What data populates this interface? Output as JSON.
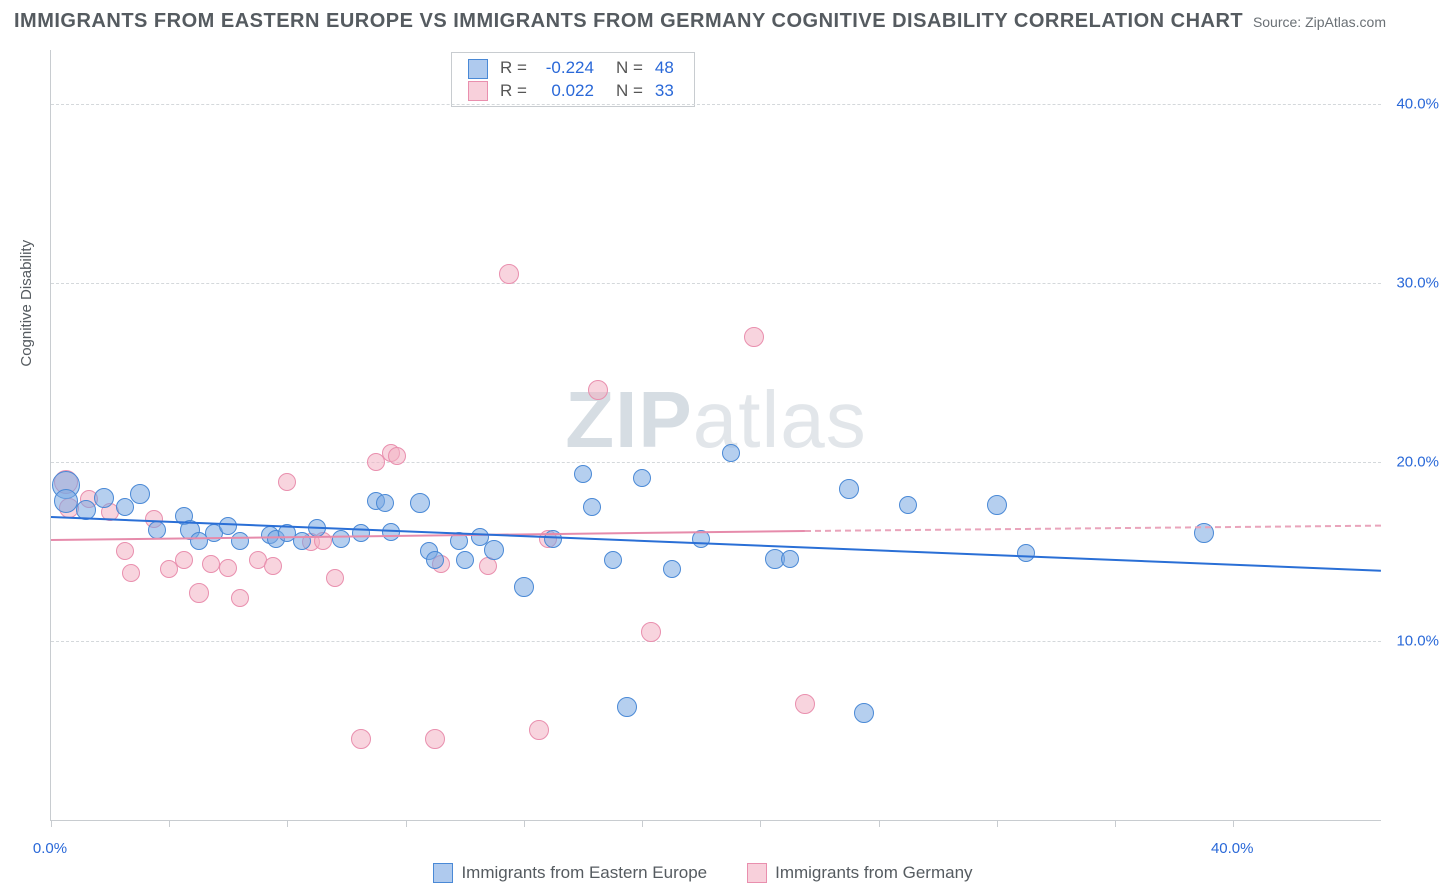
{
  "title": "IMMIGRANTS FROM EASTERN EUROPE VS IMMIGRANTS FROM GERMANY COGNITIVE DISABILITY CORRELATION CHART",
  "source_label": "Source: ZipAtlas.com",
  "watermark": {
    "bold": "ZIP",
    "rest": "atlas"
  },
  "y_axis_title": "Cognitive Disability",
  "plot": {
    "x_min": 0,
    "x_max": 45,
    "y_min": 0,
    "y_max": 43,
    "y_gridlines": [
      10,
      20,
      30,
      40
    ],
    "y_tick_labels": [
      "10.0%",
      "20.0%",
      "30.0%",
      "40.0%"
    ],
    "x_ticks_at": [
      0,
      4,
      8,
      12,
      16,
      20,
      24,
      28,
      32,
      36,
      40
    ],
    "x_tick_labels": {
      "0": "0.0%",
      "40": "40.0%"
    },
    "background": "#ffffff",
    "grid_color": "#d4d8db",
    "axis_color": "#c8ccd0",
    "tick_label_color": "#2968d8",
    "tick_fontsize": 15
  },
  "series": [
    {
      "name": "Immigrants from Eastern Europe",
      "color_fill": "rgba(121,167,226,0.55)",
      "color_stroke": "#4a89d6",
      "marker_radius_base": 9,
      "points": [
        {
          "x": 0.5,
          "y": 18.7,
          "r": 14
        },
        {
          "x": 0.5,
          "y": 17.8,
          "r": 12
        },
        {
          "x": 1.2,
          "y": 17.3,
          "r": 10
        },
        {
          "x": 1.8,
          "y": 18.0,
          "r": 10
        },
        {
          "x": 2.5,
          "y": 17.5,
          "r": 9
        },
        {
          "x": 3.0,
          "y": 18.2,
          "r": 10
        },
        {
          "x": 3.6,
          "y": 16.2,
          "r": 9
        },
        {
          "x": 4.5,
          "y": 17.0,
          "r": 9
        },
        {
          "x": 4.7,
          "y": 16.2,
          "r": 10
        },
        {
          "x": 5.0,
          "y": 15.6,
          "r": 9
        },
        {
          "x": 5.5,
          "y": 16.0,
          "r": 9
        },
        {
          "x": 6.0,
          "y": 16.4,
          "r": 9
        },
        {
          "x": 6.4,
          "y": 15.6,
          "r": 9
        },
        {
          "x": 7.4,
          "y": 15.9,
          "r": 9
        },
        {
          "x": 7.6,
          "y": 15.7,
          "r": 9
        },
        {
          "x": 8.0,
          "y": 16.0,
          "r": 9
        },
        {
          "x": 8.5,
          "y": 15.6,
          "r": 9
        },
        {
          "x": 9.0,
          "y": 16.3,
          "r": 9
        },
        {
          "x": 9.8,
          "y": 15.7,
          "r": 9
        },
        {
          "x": 10.5,
          "y": 16.0,
          "r": 9
        },
        {
          "x": 11.0,
          "y": 17.8,
          "r": 9
        },
        {
          "x": 11.3,
          "y": 17.7,
          "r": 9
        },
        {
          "x": 11.5,
          "y": 16.1,
          "r": 9
        },
        {
          "x": 12.5,
          "y": 17.7,
          "r": 10
        },
        {
          "x": 12.8,
          "y": 15.0,
          "r": 9
        },
        {
          "x": 13.0,
          "y": 14.5,
          "r": 9
        },
        {
          "x": 13.8,
          "y": 15.6,
          "r": 9
        },
        {
          "x": 14.0,
          "y": 14.5,
          "r": 9
        },
        {
          "x": 14.5,
          "y": 15.8,
          "r": 9
        },
        {
          "x": 15.0,
          "y": 15.1,
          "r": 10
        },
        {
          "x": 16.0,
          "y": 13.0,
          "r": 10
        },
        {
          "x": 17.0,
          "y": 15.7,
          "r": 9
        },
        {
          "x": 18.0,
          "y": 19.3,
          "r": 9
        },
        {
          "x": 18.3,
          "y": 17.5,
          "r": 9
        },
        {
          "x": 19.0,
          "y": 14.5,
          "r": 9
        },
        {
          "x": 19.5,
          "y": 6.3,
          "r": 10
        },
        {
          "x": 20.0,
          "y": 19.1,
          "r": 9
        },
        {
          "x": 21.0,
          "y": 14.0,
          "r": 9
        },
        {
          "x": 22.0,
          "y": 15.7,
          "r": 9
        },
        {
          "x": 23.0,
          "y": 20.5,
          "r": 9
        },
        {
          "x": 24.5,
          "y": 14.6,
          "r": 10
        },
        {
          "x": 25.0,
          "y": 14.6,
          "r": 9
        },
        {
          "x": 27.0,
          "y": 18.5,
          "r": 10
        },
        {
          "x": 27.5,
          "y": 6.0,
          "r": 10
        },
        {
          "x": 29.0,
          "y": 17.6,
          "r": 9
        },
        {
          "x": 32.0,
          "y": 17.6,
          "r": 10
        },
        {
          "x": 33.0,
          "y": 14.9,
          "r": 9
        },
        {
          "x": 39.0,
          "y": 16.0,
          "r": 10
        }
      ],
      "trend": {
        "x1": 0,
        "y1": 17.0,
        "x2": 45,
        "y2": 14.0,
        "color": "#2a6fd6",
        "width": 2.5
      }
    },
    {
      "name": "Immigrants from Germany",
      "color_fill": "rgba(243,176,195,0.55)",
      "color_stroke": "#e98fae",
      "marker_radius_base": 9,
      "points": [
        {
          "x": 0.5,
          "y": 18.9,
          "r": 12
        },
        {
          "x": 0.6,
          "y": 17.4,
          "r": 10
        },
        {
          "x": 1.3,
          "y": 17.9,
          "r": 9
        },
        {
          "x": 2.0,
          "y": 17.2,
          "r": 9
        },
        {
          "x": 2.5,
          "y": 15.0,
          "r": 9
        },
        {
          "x": 2.7,
          "y": 13.8,
          "r": 9
        },
        {
          "x": 3.5,
          "y": 16.8,
          "r": 9
        },
        {
          "x": 4.0,
          "y": 14.0,
          "r": 9
        },
        {
          "x": 4.5,
          "y": 14.5,
          "r": 9
        },
        {
          "x": 5.0,
          "y": 12.7,
          "r": 10
        },
        {
          "x": 5.4,
          "y": 14.3,
          "r": 9
        },
        {
          "x": 6.0,
          "y": 14.1,
          "r": 9
        },
        {
          "x": 6.4,
          "y": 12.4,
          "r": 9
        },
        {
          "x": 7.0,
          "y": 14.5,
          "r": 9
        },
        {
          "x": 7.5,
          "y": 14.2,
          "r": 9
        },
        {
          "x": 8.0,
          "y": 18.9,
          "r": 9
        },
        {
          "x": 8.8,
          "y": 15.5,
          "r": 9
        },
        {
          "x": 9.2,
          "y": 15.6,
          "r": 9
        },
        {
          "x": 9.6,
          "y": 13.5,
          "r": 9
        },
        {
          "x": 10.5,
          "y": 4.5,
          "r": 10
        },
        {
          "x": 11.0,
          "y": 20.0,
          "r": 9
        },
        {
          "x": 11.5,
          "y": 20.5,
          "r": 9
        },
        {
          "x": 11.7,
          "y": 20.3,
          "r": 9
        },
        {
          "x": 13.0,
          "y": 4.5,
          "r": 10
        },
        {
          "x": 13.2,
          "y": 14.3,
          "r": 9
        },
        {
          "x": 14.8,
          "y": 14.2,
          "r": 9
        },
        {
          "x": 15.5,
          "y": 30.5,
          "r": 10
        },
        {
          "x": 16.5,
          "y": 5.0,
          "r": 10
        },
        {
          "x": 16.8,
          "y": 15.7,
          "r": 9
        },
        {
          "x": 18.5,
          "y": 24.0,
          "r": 10
        },
        {
          "x": 20.3,
          "y": 10.5,
          "r": 10
        },
        {
          "x": 23.8,
          "y": 27.0,
          "r": 10
        },
        {
          "x": 25.5,
          "y": 6.5,
          "r": 10
        }
      ],
      "trend_solid": {
        "x1": 0,
        "y1": 15.7,
        "x2": 25.5,
        "y2": 16.2,
        "color": "#e68bab",
        "width": 2
      },
      "trend_dashed": {
        "x1": 25.5,
        "y1": 16.2,
        "x2": 45,
        "y2": 16.5,
        "color": "#e9a4bb",
        "width": 2
      }
    }
  ],
  "correlation_legend": {
    "rows": [
      {
        "swatch": "blue",
        "r_label": "R =",
        "r_value": "-0.224",
        "n_label": "N =",
        "n_value": "48"
      },
      {
        "swatch": "pink",
        "r_label": "R =",
        "r_value": "0.022",
        "n_label": "N =",
        "n_value": "33"
      }
    ],
    "label_color": "#555",
    "value_color": "#2968d8",
    "fontsize": 17
  },
  "bottom_legend": {
    "items": [
      {
        "swatch": "blue",
        "label": "Immigrants from Eastern Europe"
      },
      {
        "swatch": "pink",
        "label": "Immigrants from Germany"
      }
    ]
  }
}
